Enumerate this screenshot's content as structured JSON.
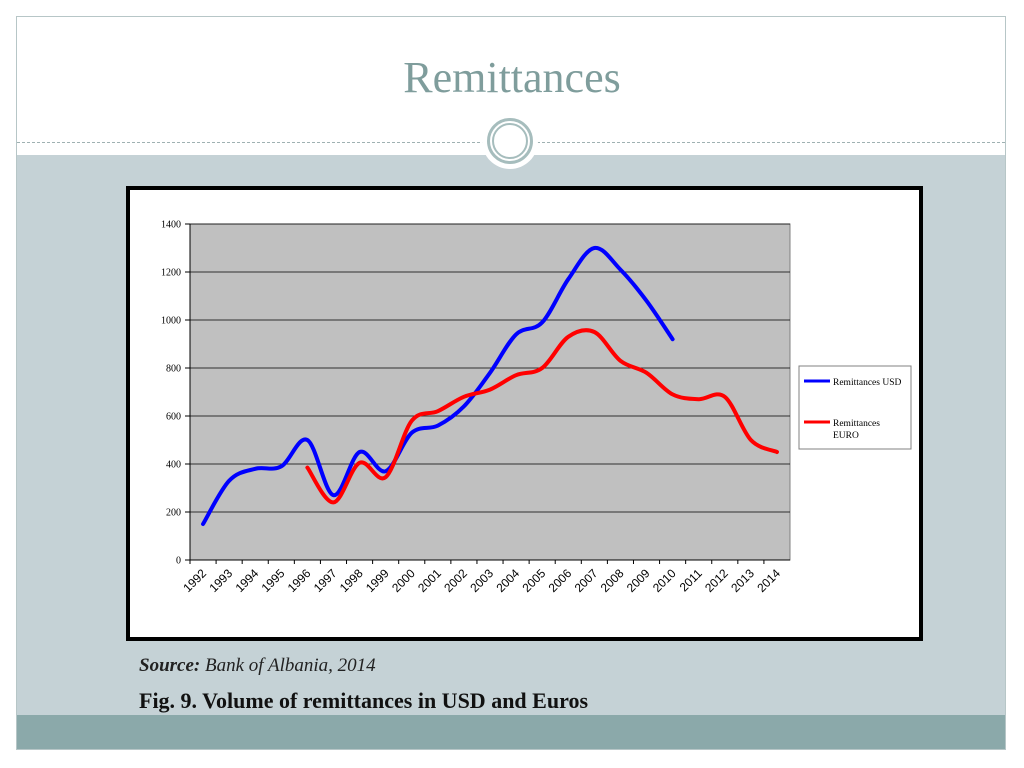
{
  "slide": {
    "title": "Remittances",
    "source_label": "Source:",
    "source_text": "Bank of Albania, 2014",
    "caption": "Fig. 9. Volume of remittances in USD and Euros"
  },
  "chart_data": {
    "type": "line",
    "categories": [
      "1992",
      "1993",
      "1994",
      "1995",
      "1996",
      "1997",
      "1998",
      "1999",
      "2000",
      "2001",
      "2002",
      "2003",
      "2004",
      "2005",
      "2006",
      "2007",
      "2008",
      "2009",
      "2010",
      "2011",
      "2012",
      "2013",
      "2014"
    ],
    "ylim": [
      0,
      1400
    ],
    "yticks": [
      0,
      200,
      400,
      600,
      800,
      1000,
      1200,
      1400
    ],
    "grid": true,
    "legend_position": "right",
    "series": [
      {
        "name": "Remittances USD",
        "color": "#0000ff",
        "values": [
          150,
          330,
          380,
          390,
          500,
          270,
          450,
          370,
          530,
          560,
          640,
          780,
          940,
          990,
          1170,
          1300,
          1210,
          1080,
          920,
          null,
          null,
          null,
          null
        ]
      },
      {
        "name": "Remittances EURO",
        "color": "#ff0000",
        "values": [
          null,
          null,
          null,
          null,
          385,
          240,
          405,
          345,
          580,
          620,
          680,
          710,
          770,
          800,
          930,
          950,
          830,
          780,
          690,
          670,
          680,
          500,
          450
        ]
      }
    ]
  }
}
